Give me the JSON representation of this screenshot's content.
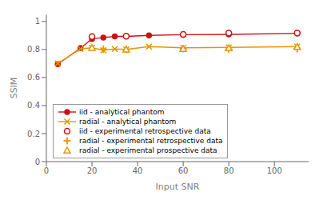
{
  "chart_data": {
    "type": "line",
    "xlabel": "Input SNR",
    "ylabel": "SSIM",
    "xlim": [
      0,
      115
    ],
    "ylim": [
      0,
      1.05
    ],
    "xticks": [
      0,
      20,
      40,
      60,
      80,
      100
    ],
    "yticks": [
      0,
      0.2,
      0.4,
      0.6,
      0.8,
      1
    ],
    "grid": false,
    "legend": "lower left",
    "series": [
      {
        "name": "iid - analytical phantom",
        "type": "line",
        "marker": "circle",
        "color": "#cc1111",
        "x": [
          5,
          15,
          20,
          25,
          30,
          35,
          45,
          60,
          80,
          110
        ],
        "values": [
          0.695,
          0.81,
          0.875,
          0.885,
          0.893,
          0.893,
          0.9,
          0.905,
          0.907,
          0.915
        ]
      },
      {
        "name": "radial - analytical phantom",
        "type": "line",
        "marker": "x",
        "color": "#e69500",
        "x": [
          5,
          15,
          20,
          25,
          30,
          35,
          45,
          60,
          80,
          110
        ],
        "values": [
          0.7,
          0.805,
          0.812,
          0.795,
          0.803,
          0.8,
          0.82,
          0.812,
          0.815,
          0.82
        ]
      },
      {
        "name": "iid - experimental retrospective data",
        "type": "scatter",
        "marker": "open circle",
        "color": "#cc1111",
        "x": [
          20,
          35,
          60,
          80,
          110
        ],
        "values": [
          0.891,
          0.895,
          0.907,
          0.918,
          0.917
        ]
      },
      {
        "name": "radial - experimental retrospective data",
        "type": "scatter",
        "marker": "plus",
        "color": "#e69500",
        "x": [
          25,
          35,
          60,
          80,
          110
        ],
        "values": [
          0.802,
          0.8,
          0.805,
          0.802,
          0.805
        ]
      },
      {
        "name": "radial - experimental prospective data",
        "type": "scatter",
        "marker": "open triangle",
        "color": "#e69500",
        "x": [
          20,
          35,
          60,
          80,
          110
        ],
        "values": [
          0.812,
          0.8,
          0.805,
          0.81,
          0.818
        ]
      }
    ]
  }
}
